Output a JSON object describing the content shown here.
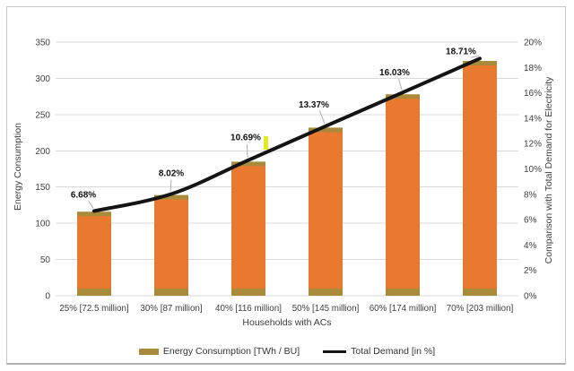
{
  "chart_data": {
    "type": "combo",
    "categories": [
      "25% [72.5 million]",
      "30% [87 million]",
      "40% [116 million]",
      "50% [145 million]",
      "60% [174 million]",
      "70% [203 million]"
    ],
    "series": [
      {
        "name": "Energy Consumption [TWh / BU]",
        "type": "bar",
        "axis": "left",
        "values": [
          116,
          139,
          185,
          232,
          278,
          324
        ],
        "fill": "#E8792F",
        "edge": "#A98A3B"
      },
      {
        "name": "Total Demand [in %]",
        "type": "line",
        "axis": "right",
        "values": [
          6.68,
          8.02,
          10.69,
          13.37,
          16.03,
          18.71
        ],
        "point_labels": [
          "6.68%",
          "8.02%",
          "10.69%",
          "13.37%",
          "16.03%",
          "18.71%"
        ],
        "color": "#141414",
        "smooth": true
      }
    ],
    "x_axis": {
      "title": "Households with ACs"
    },
    "y_left": {
      "title": "Energy Consumption",
      "min": 0,
      "max": 350,
      "step": 50,
      "tick_labels": [
        "0",
        "50",
        "100",
        "150",
        "200",
        "250",
        "300",
        "350"
      ]
    },
    "y_right": {
      "title": "Comparison with Total Demand for Electricity",
      "min": 0,
      "max": 20,
      "step": 2,
      "tick_labels": [
        "0%",
        "2%",
        "4%",
        "6%",
        "8%",
        "10%",
        "12%",
        "14%",
        "16%",
        "18%",
        "20%"
      ]
    },
    "legend": {
      "position": "bottom",
      "entries": [
        {
          "label": "Energy Consumption [TWh / BU]",
          "swatch": "bar",
          "color": "#A98A3B"
        },
        {
          "label": "Total Demand [in %]",
          "swatch": "line",
          "color": "#141414"
        }
      ]
    },
    "grid": {
      "horizontal": true,
      "color": "#D9D9D9"
    },
    "stray_mark": {
      "color": "#E2EC1C"
    },
    "text_colors": {
      "ticks": "#404040",
      "data_labels": "#111111",
      "leader": "#A6A6A6"
    }
  }
}
